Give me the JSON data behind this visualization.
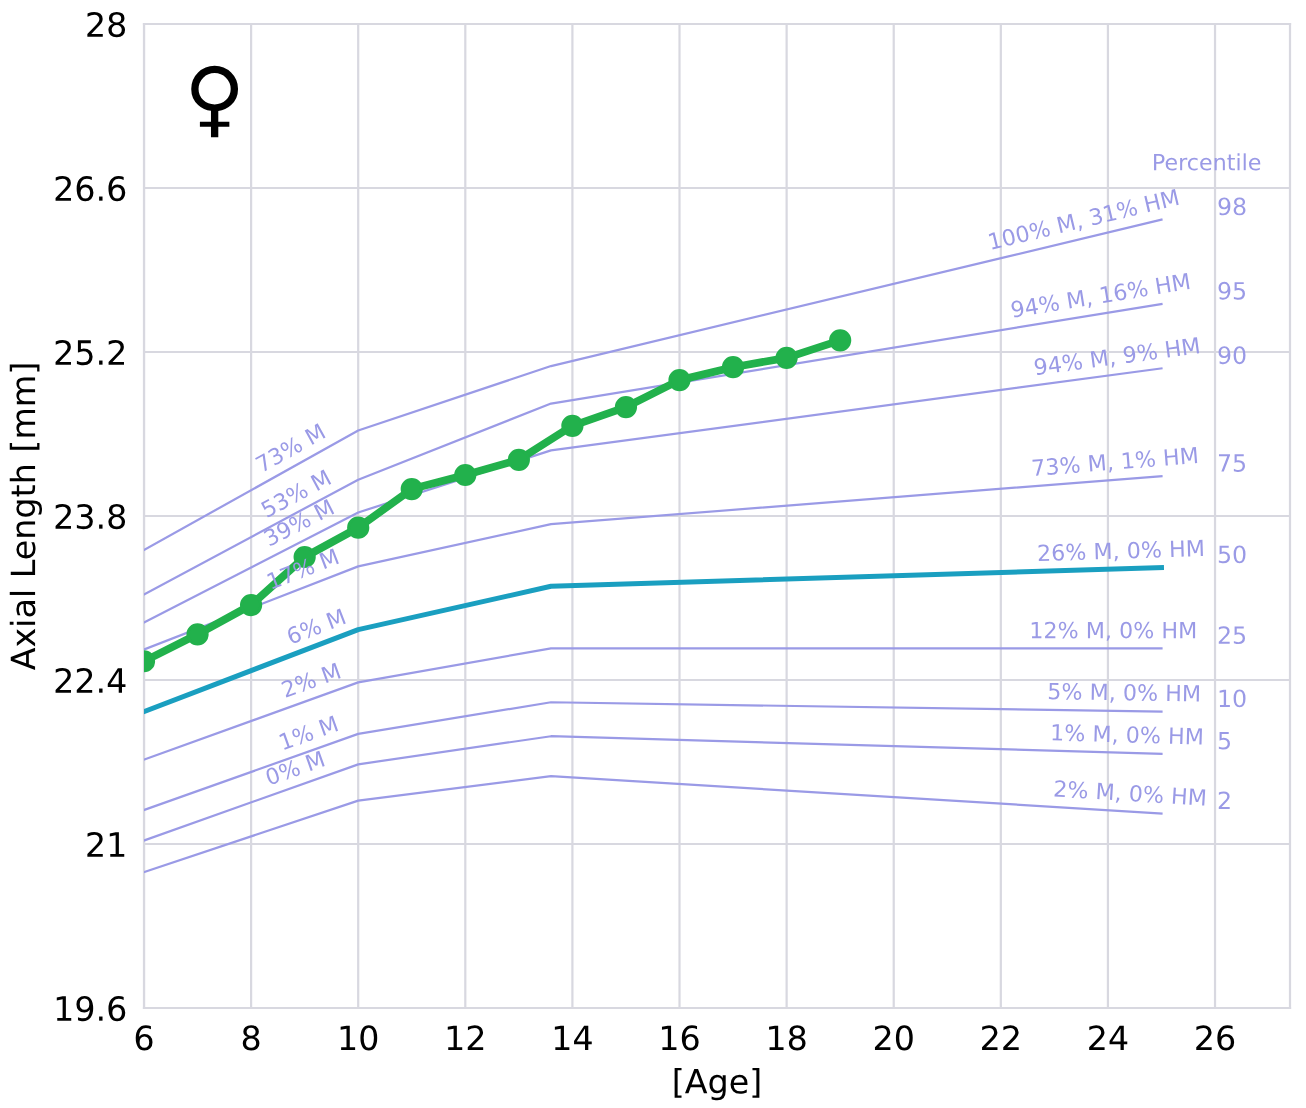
{
  "chart_data": {
    "type": "line",
    "xlabel": "[Age]",
    "ylabel": "Axial Length [mm]",
    "legend_title": "Percentile",
    "xlim": [
      6,
      27.4
    ],
    "xticks": [
      6,
      8,
      10,
      12,
      14,
      16,
      18,
      20,
      22,
      24,
      26
    ],
    "ylim": [
      19.6,
      28
    ],
    "yticks": [
      19.6,
      21,
      22.4,
      23.8,
      25.2,
      26.6,
      28
    ],
    "grid": true,
    "legend": "right",
    "line_style": "solid",
    "series": [
      {
        "name": "98",
        "color": "#9a9ae6",
        "x": [
          6,
          10,
          13.6,
          25
        ],
        "values": [
          23.51,
          24.53,
          25.08,
          26.33
        ]
      },
      {
        "name": "95",
        "color": "#9a9ae6",
        "x": [
          6,
          10,
          13.6,
          25
        ],
        "values": [
          23.13,
          24.11,
          24.76,
          25.61
        ]
      },
      {
        "name": "90",
        "color": "#9a9ae6",
        "x": [
          6,
          10,
          13.6,
          25
        ],
        "values": [
          22.89,
          23.83,
          24.36,
          25.06
        ]
      },
      {
        "name": "75",
        "color": "#9a9ae6",
        "x": [
          6,
          10,
          13.6,
          25
        ],
        "values": [
          22.66,
          23.37,
          23.73,
          24.14
        ]
      },
      {
        "name": "50",
        "color": "#1a9fc0",
        "x": [
          6,
          10,
          13.6,
          25
        ],
        "values": [
          22.13,
          22.83,
          23.2,
          23.36
        ]
      },
      {
        "name": "25",
        "color": "#9a9ae6",
        "x": [
          6,
          10,
          13.6,
          25
        ],
        "values": [
          21.72,
          22.38,
          22.67,
          22.67
        ]
      },
      {
        "name": "10",
        "color": "#9a9ae6",
        "x": [
          6,
          10,
          13.6,
          25
        ],
        "values": [
          21.29,
          21.94,
          22.21,
          22.13
        ]
      },
      {
        "name": "5",
        "color": "#9a9ae6",
        "x": [
          6,
          10,
          13.6,
          25
        ],
        "values": [
          21.03,
          21.68,
          21.92,
          21.77
        ]
      },
      {
        "name": "2",
        "color": "#9a9ae6",
        "x": [
          6,
          10,
          13.6,
          25
        ],
        "values": [
          20.76,
          21.37,
          21.58,
          21.26
        ]
      },
      {
        "color": "#22b14c",
        "marker": "circle",
        "x": [
          6,
          7,
          8,
          9,
          10,
          11,
          12,
          13,
          14,
          15,
          16,
          17,
          18,
          19
        ],
        "values": [
          22.56,
          22.79,
          23.04,
          23.45,
          23.7,
          24.03,
          24.15,
          24.28,
          24.57,
          24.73,
          24.96,
          25.07,
          25.15,
          25.3
        ]
      }
    ],
    "annotations": [
      "♀",
      {
        "text": "73% M",
        "x": 8.85,
        "y": 24.24
      },
      {
        "text": "53% M",
        "x": 8.95,
        "y": 23.85
      },
      {
        "text": "39% M",
        "x": 9.0,
        "y": 23.6
      },
      {
        "text": "17% M",
        "x": 9.05,
        "y": 23.2
      },
      {
        "text": "6% M",
        "x": 9.3,
        "y": 22.71
      },
      {
        "text": "2% M",
        "x": 9.2,
        "y": 22.25
      },
      {
        "text": "1% M",
        "x": 9.15,
        "y": 21.8
      },
      {
        "text": "0% M",
        "x": 8.9,
        "y": 21.5
      },
      {
        "text": "100% M, 31% HM",
        "x": 23.6,
        "y": 26.18
      },
      {
        "text": "94% M, 16% HM",
        "x": 23.9,
        "y": 25.53
      },
      {
        "text": "94% M, 9% HM",
        "x": 24.2,
        "y": 25.01
      },
      {
        "text": "73% M, 1% HM",
        "x": 24.15,
        "y": 24.11
      },
      {
        "text": "26% M, 0% HM",
        "x": 24.25,
        "y": 23.35
      },
      {
        "text": "12% M, 0% HM",
        "x": 24.1,
        "y": 22.67
      },
      {
        "text": "5% M, 0% HM",
        "x": 24.3,
        "y": 22.14
      },
      {
        "text": "1% M, 0% HM",
        "x": 24.35,
        "y": 21.78
      },
      {
        "text": "2% M, 0% HM",
        "x": 24.4,
        "y": 21.28
      }
    ]
  }
}
